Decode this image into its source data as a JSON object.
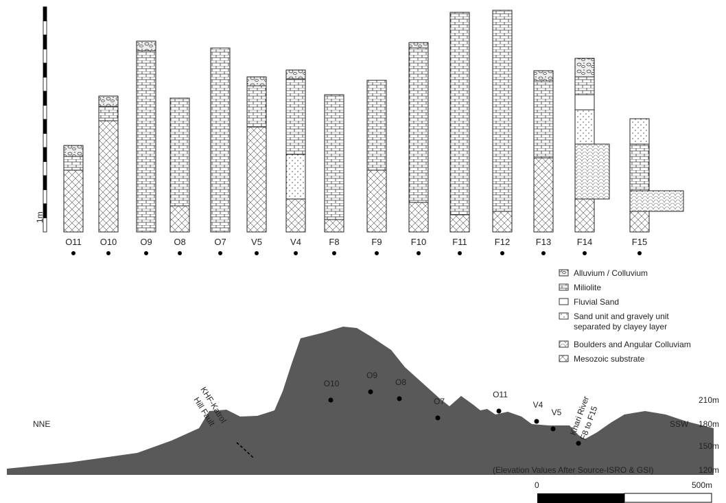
{
  "scale_bar_label": "1m",
  "columns": [
    "O11",
    "O10",
    "O9",
    "O8",
    "O7",
    "V5",
    "V4",
    "F8",
    "F9",
    "F10",
    "F11",
    "F12",
    "F13",
    "F14",
    "F15"
  ],
  "legend": [
    [
      "Alluvium / Colluvium"
    ],
    [
      "Miliolite"
    ],
    [
      "Fluvial Sand"
    ],
    [
      "Sand unit and gravely unit",
      "separated by clayey layer"
    ],
    [
      "Boulders and Angular Colluviam"
    ],
    [
      "Mesozoic substrate"
    ]
  ],
  "profile": {
    "directions": [
      "NNE",
      "SSW"
    ],
    "fault": [
      "KHF-Katrol",
      "Hill Fault"
    ],
    "river": [
      "Khari River",
      "F8 to F15"
    ],
    "sites": [
      "O10",
      "O9",
      "O8",
      "O7",
      "O11",
      "V4",
      "V5"
    ],
    "elevations": [
      "210m",
      "180m",
      "150m",
      "120m"
    ],
    "note": "(Elevation Values After Source-ISRO & GSI)",
    "scale": [
      "0",
      "500m"
    ]
  }
}
